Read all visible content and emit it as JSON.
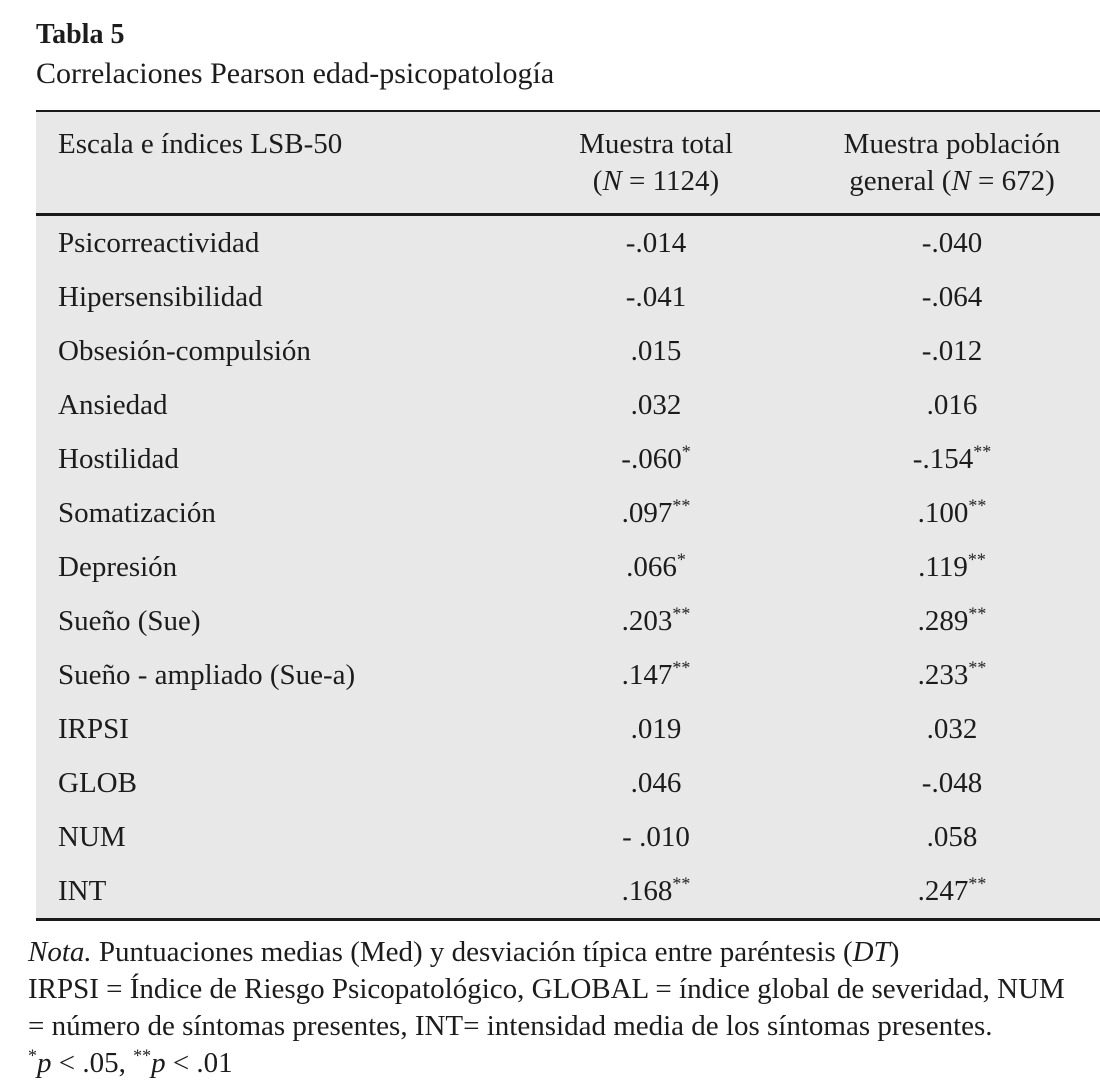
{
  "page": {
    "title": "Tabla 5",
    "subtitle": "Correlaciones Pearson edad-psicopatología"
  },
  "table": {
    "header": {
      "col1": "Escala e índices LSB-50",
      "col2": {
        "line1": "Muestra total",
        "pre": "(",
        "n": "N",
        "post": " = 1124)"
      },
      "col3": {
        "line1": "Muestra población",
        "pre": "general (",
        "n": "N",
        "post": " = 672)"
      }
    },
    "rows": [
      {
        "label": "Psicorreactividad",
        "total": "-.014",
        "total_sig": "",
        "general": "-.040",
        "general_sig": ""
      },
      {
        "label": "Hipersensibilidad",
        "total": "-.041",
        "total_sig": "",
        "general": "-.064",
        "general_sig": ""
      },
      {
        "label": "Obsesión-compulsión",
        "total": ".015",
        "total_sig": "",
        "general": "-.012",
        "general_sig": ""
      },
      {
        "label": "Ansiedad",
        "total": ".032",
        "total_sig": "",
        "general": ".016",
        "general_sig": ""
      },
      {
        "label": "Hostilidad",
        "total": "-.060",
        "total_sig": "*",
        "general": "-.154",
        "general_sig": "**"
      },
      {
        "label": "Somatización",
        "total": ".097",
        "total_sig": "**",
        "general": ".100",
        "general_sig": "**"
      },
      {
        "label": "Depresión",
        "total": ".066",
        "total_sig": "*",
        "general": ".119",
        "general_sig": "**"
      },
      {
        "label": "Sueño (Sue)",
        "total": ".203",
        "total_sig": "**",
        "general": ".289",
        "general_sig": "**"
      },
      {
        "label": "Sueño - ampliado (Sue-a)",
        "total": ".147",
        "total_sig": "**",
        "general": ".233",
        "general_sig": "**"
      },
      {
        "label": "IRPSI",
        "total": ".019",
        "total_sig": "",
        "general": ".032",
        "general_sig": ""
      },
      {
        "label": "GLOB",
        "total": ".046",
        "total_sig": "",
        "general": "-.048",
        "general_sig": ""
      },
      {
        "label": "NUM",
        "total": "- .010",
        "total_sig": "",
        "general": ".058",
        "general_sig": ""
      },
      {
        "label": "INT",
        "total": ".168",
        "total_sig": "**",
        "general": ".247",
        "general_sig": "**"
      }
    ]
  },
  "footnotes": [
    {
      "parts": [
        {
          "text": "Nota.",
          "italic": true
        },
        {
          "text": " Puntuaciones medias (Med) y desviación típica entre paréntesis ("
        },
        {
          "text": "DT",
          "italic": true
        },
        {
          "text": ")"
        }
      ]
    },
    {
      "parts": [
        {
          "text": "IRPSI = Índice de Riesgo Psicopatológico, GLOBAL = índice global de severidad, NUM"
        }
      ]
    },
    {
      "parts": [
        {
          "text": "= número de síntomas presentes, INT= intensidad media de los síntomas presentes."
        }
      ]
    },
    {
      "parts": [
        {
          "text": "*",
          "sup": true
        },
        {
          "text": "p",
          "italic": true
        },
        {
          "text": " < .05, "
        },
        {
          "text": "**",
          "sup": true
        },
        {
          "text": "p",
          "italic": true
        },
        {
          "text": " < .01"
        }
      ]
    }
  ],
  "colors": {
    "table_background": "#e8e8e8",
    "text": "#1c1c1c",
    "border": "#1a1a1a"
  }
}
